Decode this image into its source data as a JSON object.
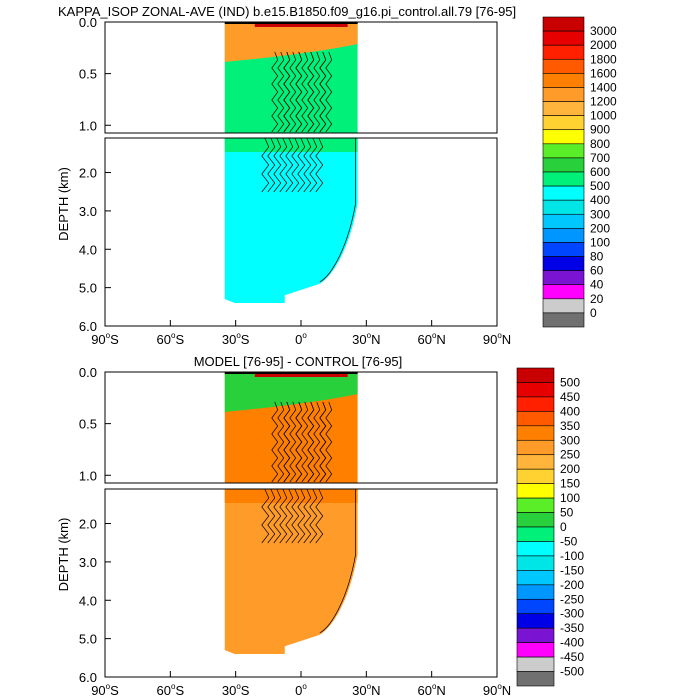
{
  "chart_data": [
    {
      "type": "heatmap",
      "title": "KAPPA_ISOP ZONAL-AVE (IND) b.e15.B1850.f09_g16.pi_control.all.79 [76-95]",
      "ylabel": "DEPTH (km)",
      "upper_yticks": [
        "0.0",
        "0.5",
        "1.0"
      ],
      "lower_yticks": [
        "2.0",
        "3.0",
        "4.0",
        "5.0",
        "6.0"
      ],
      "xticks": [
        {
          "deg": "90",
          "hemi": "S"
        },
        {
          "deg": "60",
          "hemi": "S"
        },
        {
          "deg": "30",
          "hemi": "S"
        },
        {
          "deg": "0",
          "hemi": ""
        },
        {
          "deg": "30",
          "hemi": "N"
        },
        {
          "deg": "60",
          "hemi": "N"
        },
        {
          "deg": "90",
          "hemi": "N"
        }
      ],
      "xlim": [
        -90,
        90
      ],
      "data_lat_range": [
        -35,
        26
      ],
      "colorbar": {
        "labels": [
          "3000",
          "2000",
          "1800",
          "1600",
          "1400",
          "1200",
          "1000",
          "900",
          "800",
          "700",
          "600",
          "500",
          "400",
          "300",
          "200",
          "100",
          "80",
          "60",
          "40",
          "20",
          "0"
        ],
        "colors": [
          "#c80000",
          "#e60000",
          "#ff2000",
          "#ff5a00",
          "#ff8000",
          "#ff9b28",
          "#ffb43c",
          "#ffd232",
          "#ffff00",
          "#5aee28",
          "#28d03c",
          "#00f07a",
          "#00ffff",
          "#00e6e6",
          "#00c8ff",
          "#0096ff",
          "#0046ff",
          "#0000e6",
          "#7a14d2",
          "#ff00ff",
          "#cccccc",
          "#707070"
        ]
      },
      "colors": {
        "main": "#00ffff",
        "upper": "#00f07a",
        "surface": "#ff9b28"
      }
    },
    {
      "type": "heatmap",
      "title": "MODEL [76-95] - CONTROL [76-95]",
      "ylabel": "DEPTH (km)",
      "upper_yticks": [
        "0.0",
        "0.5",
        "1.0"
      ],
      "lower_yticks": [
        "2.0",
        "3.0",
        "4.0",
        "5.0",
        "6.0"
      ],
      "xticks": [
        {
          "deg": "90",
          "hemi": "S"
        },
        {
          "deg": "60",
          "hemi": "S"
        },
        {
          "deg": "30",
          "hemi": "S"
        },
        {
          "deg": "0",
          "hemi": ""
        },
        {
          "deg": "30",
          "hemi": "N"
        },
        {
          "deg": "60",
          "hemi": "N"
        },
        {
          "deg": "90",
          "hemi": "N"
        }
      ],
      "xlim": [
        -90,
        90
      ],
      "data_lat_range": [
        -35,
        26
      ],
      "colorbar": {
        "labels": [
          "500",
          "450",
          "400",
          "350",
          "300",
          "250",
          "200",
          "150",
          "100",
          "50",
          "0",
          "-50",
          "-100",
          "-150",
          "-200",
          "-250",
          "-300",
          "-350",
          "-400",
          "-450",
          "-500"
        ],
        "colors": [
          "#c80000",
          "#e60000",
          "#ff2000",
          "#ff5a00",
          "#ff8000",
          "#ff9b28",
          "#ffb43c",
          "#ffd232",
          "#ffff00",
          "#5aee28",
          "#28d03c",
          "#00f07a",
          "#00ffff",
          "#00e6e6",
          "#00c8ff",
          "#0096ff",
          "#0046ff",
          "#0000e6",
          "#7a14d2",
          "#ff00ff",
          "#cccccc",
          "#707070"
        ]
      },
      "colors": {
        "main": "#ff9b28",
        "upper": "#ff8000",
        "surface": "#28d03c"
      }
    }
  ]
}
